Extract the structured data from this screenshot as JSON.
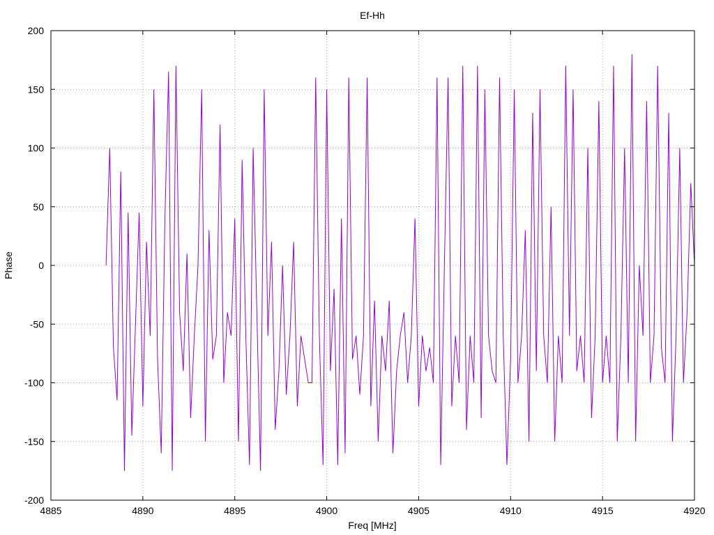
{
  "chart_data": {
    "type": "line",
    "title": "Ef-Hh",
    "xlabel": "Freq [MHz]",
    "ylabel": "Phase",
    "xlim": [
      4885,
      4920
    ],
    "ylim": [
      -200,
      200
    ],
    "x_ticks": [
      4885,
      4890,
      4895,
      4900,
      4905,
      4910,
      4915,
      4920
    ],
    "y_ticks": [
      -200,
      -150,
      -100,
      -50,
      0,
      50,
      100,
      150,
      200
    ],
    "grid": true,
    "legend": "none",
    "colors": {
      "series": "#9400d3",
      "grid": "#a0a0a0",
      "axis": "#000000"
    },
    "series": [
      {
        "x": [
          4888.0,
          4888.2,
          4888.4,
          4888.6,
          4888.8,
          4889.0,
          4889.2,
          4889.4,
          4889.6,
          4889.8,
          4890.0,
          4890.2,
          4890.4,
          4890.6,
          4890.8,
          4891.0,
          4891.2,
          4891.4,
          4891.6,
          4891.8,
          4892.0,
          4892.2,
          4892.4,
          4892.6,
          4892.8,
          4893.0,
          4893.2,
          4893.4,
          4893.6,
          4893.8,
          4894.0,
          4894.2,
          4894.4,
          4894.6,
          4894.8,
          4895.0,
          4895.2,
          4895.4,
          4895.6,
          4895.8,
          4896.0,
          4896.2,
          4896.4,
          4896.6,
          4896.8,
          4897.0,
          4897.2,
          4897.4,
          4897.6,
          4897.8,
          4898.0,
          4898.2,
          4898.4,
          4898.6,
          4898.8,
          4899.0,
          4899.2,
          4899.4,
          4899.6,
          4899.8,
          4900.0,
          4900.2,
          4900.4,
          4900.6,
          4900.8,
          4901.0,
          4901.2,
          4901.4,
          4901.6,
          4901.8,
          4902.0,
          4902.2,
          4902.4,
          4902.6,
          4902.8,
          4903.0,
          4903.2,
          4903.4,
          4903.6,
          4903.8,
          4904.0,
          4904.2,
          4904.4,
          4904.6,
          4904.8,
          4905.0,
          4905.2,
          4905.4,
          4905.6,
          4905.8,
          4906.0,
          4906.2,
          4906.4,
          4906.6,
          4906.8,
          4907.0,
          4907.2,
          4907.4,
          4907.6,
          4907.8,
          4908.0,
          4908.2,
          4908.4,
          4908.6,
          4908.8,
          4909.0,
          4909.2,
          4909.4,
          4909.6,
          4909.8,
          4910.0,
          4910.2,
          4910.4,
          4910.6,
          4910.8,
          4911.0,
          4911.2,
          4911.4,
          4911.6,
          4911.8,
          4912.0,
          4912.2,
          4912.4,
          4912.6,
          4912.8,
          4913.0,
          4913.2,
          4913.4,
          4913.6,
          4913.8,
          4914.0,
          4914.2,
          4914.4,
          4914.6,
          4914.8,
          4915.0,
          4915.2,
          4915.4,
          4915.6,
          4915.8,
          4916.0,
          4916.2,
          4916.4,
          4916.6,
          4916.8,
          4917.0,
          4917.2,
          4917.4,
          4917.6,
          4917.8,
          4918.0,
          4918.2,
          4918.4,
          4918.6,
          4918.8,
          4919.0,
          4919.2,
          4919.4,
          4919.6,
          4919.8,
          4920.0
        ],
        "values": [
          0,
          100,
          -70,
          -115,
          80,
          -175,
          45,
          -145,
          -50,
          45,
          -120,
          20,
          -60,
          150,
          -80,
          -160,
          40,
          165,
          -175,
          170,
          -40,
          -90,
          10,
          -130,
          -60,
          0,
          150,
          -150,
          30,
          -80,
          -60,
          120,
          -100,
          -40,
          -60,
          40,
          -150,
          90,
          -60,
          -170,
          100,
          -40,
          -175,
          150,
          -60,
          20,
          -140,
          -90,
          0,
          -110,
          -60,
          20,
          -120,
          -60,
          -80,
          -100,
          -100,
          160,
          -60,
          -170,
          150,
          -90,
          -20,
          -170,
          40,
          -160,
          160,
          -80,
          -60,
          -110,
          -60,
          160,
          -120,
          -30,
          -150,
          -60,
          -90,
          -30,
          -160,
          -90,
          -60,
          -40,
          -100,
          -60,
          40,
          -120,
          -60,
          -90,
          -70,
          -100,
          160,
          -170,
          0,
          160,
          -120,
          -60,
          -100,
          170,
          -140,
          -60,
          -100,
          170,
          -130,
          150,
          -60,
          -90,
          -100,
          160,
          -60,
          -170,
          -80,
          150,
          -100,
          -60,
          30,
          -150,
          130,
          -90,
          150,
          -60,
          -100,
          50,
          -150,
          -60,
          -100,
          170,
          -60,
          150,
          -90,
          -60,
          -100,
          100,
          -130,
          -60,
          140,
          -100,
          -60,
          -100,
          170,
          -150,
          -60,
          100,
          -100,
          180,
          -150,
          0,
          -60,
          140,
          -100,
          -60,
          170,
          -70,
          -100,
          130,
          -150,
          -60,
          100,
          -100,
          -40,
          70,
          0
        ]
      }
    ]
  }
}
